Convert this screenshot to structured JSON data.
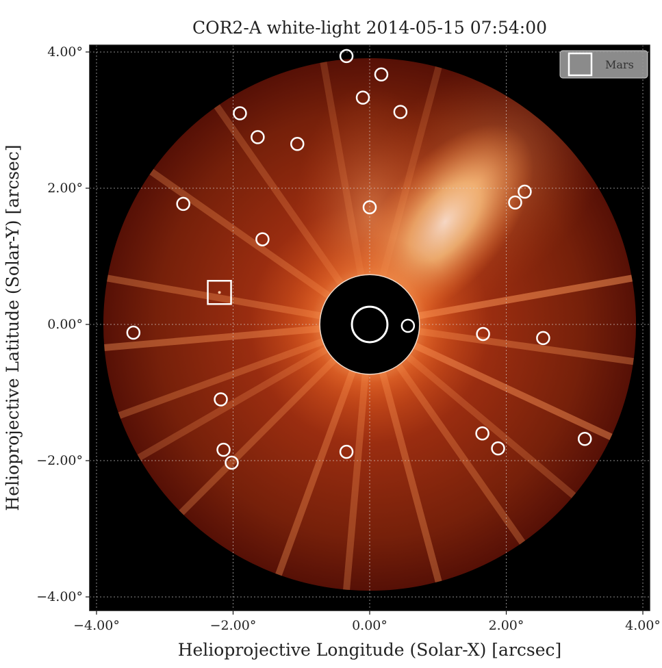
{
  "title": "COR2-A white-light 2014-05-15 07:54:00",
  "xlabel": "Helioprojective Longitude (Solar-X) [arcsec]",
  "ylabel": "Helioprojective Latitude (Solar-Y) [arcsec]",
  "legend": {
    "label": "Mars",
    "marker": "square",
    "placement": "top-right"
  },
  "colors": {
    "background": "#000000",
    "corona_dark": "#5a0c04",
    "corona_mid": "#8e2a10",
    "corona_bright": "#ffd8a0",
    "marker": "#ffffff",
    "occulter": "#000000"
  },
  "chart_data": {
    "type": "scatter",
    "xlim": [
      -4.1,
      4.1
    ],
    "ylim": [
      -4.2,
      4.1
    ],
    "grid": true,
    "x_ticks": [
      -4,
      -2,
      0,
      2,
      4
    ],
    "y_ticks": [
      -4,
      -2,
      0,
      2,
      4
    ],
    "x_tick_labels": [
      "−4.00°",
      "−2.00°",
      "0.00°",
      "2.00°",
      "4.00°"
    ],
    "y_tick_labels": [
      "−4.00°",
      "−2.00°",
      "0.00°",
      "2.00°",
      "4.00°"
    ],
    "sun_center": {
      "x": 0.0,
      "y": 0.0,
      "radius": 0.26
    },
    "occulter_radius": 0.73,
    "field_radius": 3.9,
    "mars": {
      "x": -2.2,
      "y": 0.47
    },
    "stars": [
      {
        "x": -0.34,
        "y": 3.94
      },
      {
        "x": 0.17,
        "y": 3.67
      },
      {
        "x": -0.1,
        "y": 3.33
      },
      {
        "x": 0.45,
        "y": 3.12
      },
      {
        "x": -1.9,
        "y": 3.1
      },
      {
        "x": -1.64,
        "y": 2.75
      },
      {
        "x": -1.06,
        "y": 2.65
      },
      {
        "x": -2.73,
        "y": 1.77
      },
      {
        "x": 0.0,
        "y": 1.72
      },
      {
        "x": 2.13,
        "y": 1.79
      },
      {
        "x": 2.27,
        "y": 1.95
      },
      {
        "x": -1.57,
        "y": 1.25
      },
      {
        "x": -3.46,
        "y": -0.12
      },
      {
        "x": 0.56,
        "y": -0.02
      },
      {
        "x": 1.66,
        "y": -0.14
      },
      {
        "x": 2.54,
        "y": -0.2
      },
      {
        "x": -2.18,
        "y": -1.1
      },
      {
        "x": 1.65,
        "y": -1.6
      },
      {
        "x": 1.88,
        "y": -1.82
      },
      {
        "x": 3.15,
        "y": -1.68
      },
      {
        "x": -2.14,
        "y": -1.84
      },
      {
        "x": -2.02,
        "y": -2.03
      },
      {
        "x": -0.34,
        "y": -1.87
      }
    ]
  }
}
